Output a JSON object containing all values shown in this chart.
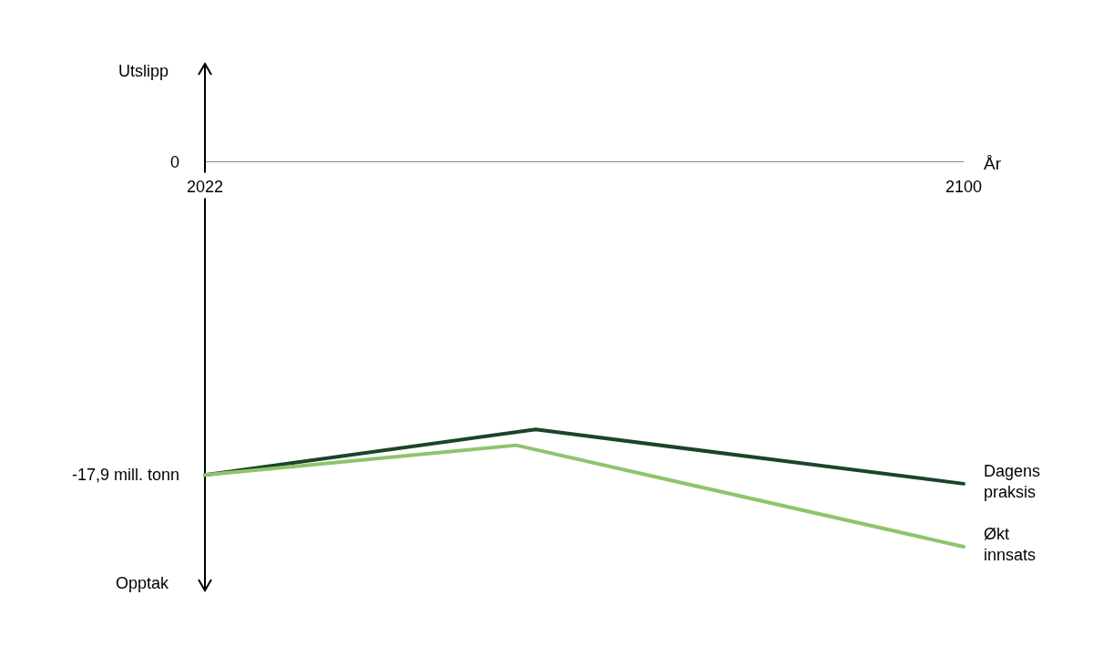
{
  "chart_data": {
    "type": "line",
    "xlabel": "År",
    "annotations": [
      "Utslipp",
      "Opptak"
    ],
    "series": [
      {
        "name": "Dagens praksis",
        "color": "#1b4429",
        "x": [
          2022,
          2056,
          2100
        ],
        "values": [
          -17.9,
          -15.3,
          -18.4
        ]
      },
      {
        "name": "Økt innsats",
        "color": "#8fc46d",
        "x": [
          2022,
          2054,
          2100
        ],
        "values": [
          -17.9,
          -16.2,
          -22.0
        ]
      }
    ],
    "xlim": [
      2022,
      2100
    ],
    "xticks": [
      2022,
      2100
    ],
    "ylim": [
      -24.5,
      5.6
    ],
    "yticks": [
      0,
      {
        "value": -17.9,
        "label": "-17,9 mill. tonn"
      }
    ],
    "grid": false,
    "marker": "none",
    "line_style": "solid"
  }
}
